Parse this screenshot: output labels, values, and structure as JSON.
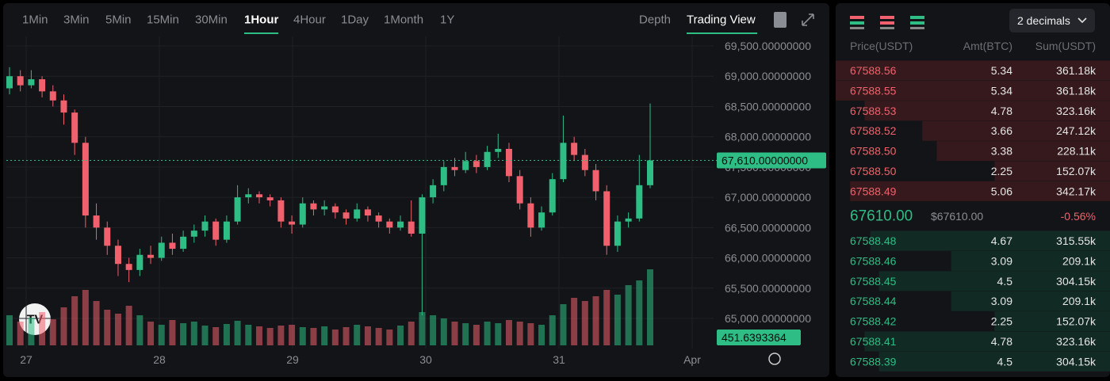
{
  "toolbar": {
    "intervals": [
      "1Min",
      "3Min",
      "5Min",
      "15Min",
      "30Min",
      "1Hour",
      "4Hour",
      "1Day",
      "1Month",
      "1Y"
    ],
    "active_interval": 5,
    "views": [
      "Depth",
      "Trading View"
    ],
    "active_view": 1
  },
  "chart_data": {
    "type": "candlestick",
    "xlabels": [
      "27",
      "28",
      "29",
      "30",
      "31",
      "Apr"
    ],
    "ylim": [
      65000,
      69500
    ],
    "yticks": [
      {
        "value": 69500,
        "label": "69,500.00000000"
      },
      {
        "value": 69000,
        "label": "69,000.00000000"
      },
      {
        "value": 68500,
        "label": "68,500.00000000"
      },
      {
        "value": 68000,
        "label": "68,000.00000000"
      },
      {
        "value": 67500,
        "label": "67,500.00000000"
      },
      {
        "value": 67000,
        "label": "67,000.00000000"
      },
      {
        "value": 66500,
        "label": "66,500.00000000"
      },
      {
        "value": 66000,
        "label": "66,000.00000000"
      },
      {
        "value": 65500,
        "label": "65,500.00000000"
      },
      {
        "value": 65000,
        "label": "65,000.00000000"
      }
    ],
    "grid": true,
    "up_color": "#2ebd85",
    "down_color": "#f0616d",
    "last_price": {
      "value": 67610,
      "label": "67,610.00000000"
    },
    "last_volume": 451.6393364,
    "volume_lim": [
      0,
      1000
    ],
    "open": [
      68800,
      69000,
      68850,
      68950,
      68750,
      68600,
      68400,
      67900,
      66700,
      66500,
      66200,
      65900,
      65800,
      66050,
      66000,
      66250,
      66150,
      66350,
      66450,
      66600,
      66300,
      66600,
      67000,
      67050,
      67000,
      66950,
      66600,
      66550,
      66900,
      66800,
      66850,
      66750,
      66650,
      66800,
      66700,
      66600,
      66500,
      66600,
      66400,
      67000,
      67200,
      67500,
      67450,
      67600,
      67500,
      67750,
      67800,
      67350,
      66900,
      66500,
      66750,
      67300,
      67900,
      67700,
      67450,
      67100,
      66200,
      66600,
      66650,
      67200
    ],
    "high": [
      69150,
      69100,
      69100,
      69000,
      68850,
      68700,
      68450,
      68000,
      66900,
      66600,
      66300,
      66000,
      66150,
      66200,
      66350,
      66400,
      66450,
      66550,
      66700,
      66650,
      66700,
      67200,
      67150,
      67100,
      67050,
      67000,
      66700,
      67000,
      66950,
      66950,
      66900,
      66800,
      66900,
      66850,
      66750,
      66650,
      66700,
      66950,
      67050,
      67300,
      67600,
      67650,
      67750,
      67700,
      67850,
      68050,
      67900,
      67450,
      67000,
      66850,
      67400,
      68350,
      68000,
      67800,
      67550,
      67200,
      66700,
      66750,
      67700,
      68550
    ],
    "low": [
      68700,
      68750,
      68800,
      68650,
      68500,
      68200,
      67700,
      66500,
      66300,
      66050,
      65700,
      65600,
      65700,
      65900,
      65950,
      66050,
      66100,
      66250,
      66350,
      66200,
      66250,
      66550,
      66900,
      66900,
      66850,
      66500,
      66400,
      66500,
      66700,
      66700,
      66650,
      66550,
      66600,
      66600,
      66500,
      66400,
      66450,
      66350,
      65050,
      66900,
      67100,
      67350,
      67400,
      67400,
      67450,
      67650,
      67250,
      66800,
      66350,
      66450,
      66700,
      67250,
      67600,
      67350,
      66950,
      66050,
      66100,
      66500,
      66600,
      67150
    ],
    "close": [
      69000,
      68850,
      68950,
      68750,
      68600,
      68400,
      67900,
      66700,
      66500,
      66200,
      65900,
      65800,
      66050,
      66000,
      66250,
      66150,
      66350,
      66450,
      66600,
      66300,
      66600,
      67000,
      67050,
      67000,
      66950,
      66600,
      66550,
      66900,
      66800,
      66850,
      66750,
      66650,
      66800,
      66700,
      66600,
      66500,
      66600,
      66400,
      67000,
      67200,
      67500,
      67450,
      67600,
      67500,
      67750,
      67800,
      67350,
      66900,
      66500,
      66750,
      67300,
      67900,
      67700,
      67450,
      67100,
      66200,
      66600,
      66650,
      67200,
      67610
    ],
    "volume": [
      380,
      300,
      350,
      420,
      330,
      480,
      620,
      700,
      560,
      450,
      400,
      500,
      380,
      300,
      260,
      320,
      280,
      300,
      250,
      230,
      270,
      310,
      260,
      240,
      220,
      250,
      260,
      230,
      220,
      240,
      200,
      230,
      260,
      240,
      220,
      200,
      250,
      300,
      420,
      380,
      340,
      300,
      280,
      260,
      300,
      280,
      320,
      300,
      280,
      260,
      380,
      520,
      600,
      560,
      620,
      700,
      640,
      760,
      820,
      960
    ]
  },
  "orderbook": {
    "precision": "2 decimals",
    "headers": [
      "Price(USDT)",
      "Amt(BTC)",
      "Sum(USDT)"
    ],
    "asks": [
      {
        "price": "67588.56",
        "amount": "5.34",
        "sum": {
          "value": 361180,
          "label": "361.18k"
        }
      },
      {
        "price": "67588.55",
        "amount": "5.34",
        "sum": {
          "value": 361180,
          "label": "361.18k"
        }
      },
      {
        "price": "67588.53",
        "amount": "4.78",
        "sum": {
          "value": 323160,
          "label": "323.16k"
        }
      },
      {
        "price": "67588.52",
        "amount": "3.66",
        "sum": {
          "value": 247120,
          "label": "247.12k"
        }
      },
      {
        "price": "67588.50",
        "amount": "3.38",
        "sum": {
          "value": 228110,
          "label": "228.11k"
        }
      },
      {
        "price": "67588.50",
        "amount": "2.25",
        "sum": {
          "value": 152070,
          "label": "152.07k"
        }
      },
      {
        "price": "67588.49",
        "amount": "5.06",
        "sum": {
          "value": 342170,
          "label": "342.17k"
        }
      }
    ],
    "last": "67610.00",
    "last_usd": "$67610.00",
    "change": "-0.56%",
    "bids": [
      {
        "price": "67588.48",
        "amount": "4.67",
        "sum": {
          "value": 315550,
          "label": "315.55k"
        }
      },
      {
        "price": "67588.46",
        "amount": "3.09",
        "sum": {
          "value": 209100,
          "label": "209.1k"
        }
      },
      {
        "price": "67588.45",
        "amount": "4.5",
        "sum": {
          "value": 304150,
          "label": "304.15k"
        }
      },
      {
        "price": "67588.44",
        "amount": "3.09",
        "sum": {
          "value": 209100,
          "label": "209.1k"
        }
      },
      {
        "price": "67588.42",
        "amount": "2.25",
        "sum": {
          "value": 152070,
          "label": "152.07k"
        }
      },
      {
        "price": "67588.41",
        "amount": "4.78",
        "sum": {
          "value": 323160,
          "label": "323.16k"
        }
      },
      {
        "price": "67588.39",
        "amount": "4.5",
        "sum": {
          "value": 304150,
          "label": "304.15k"
        }
      }
    ]
  }
}
